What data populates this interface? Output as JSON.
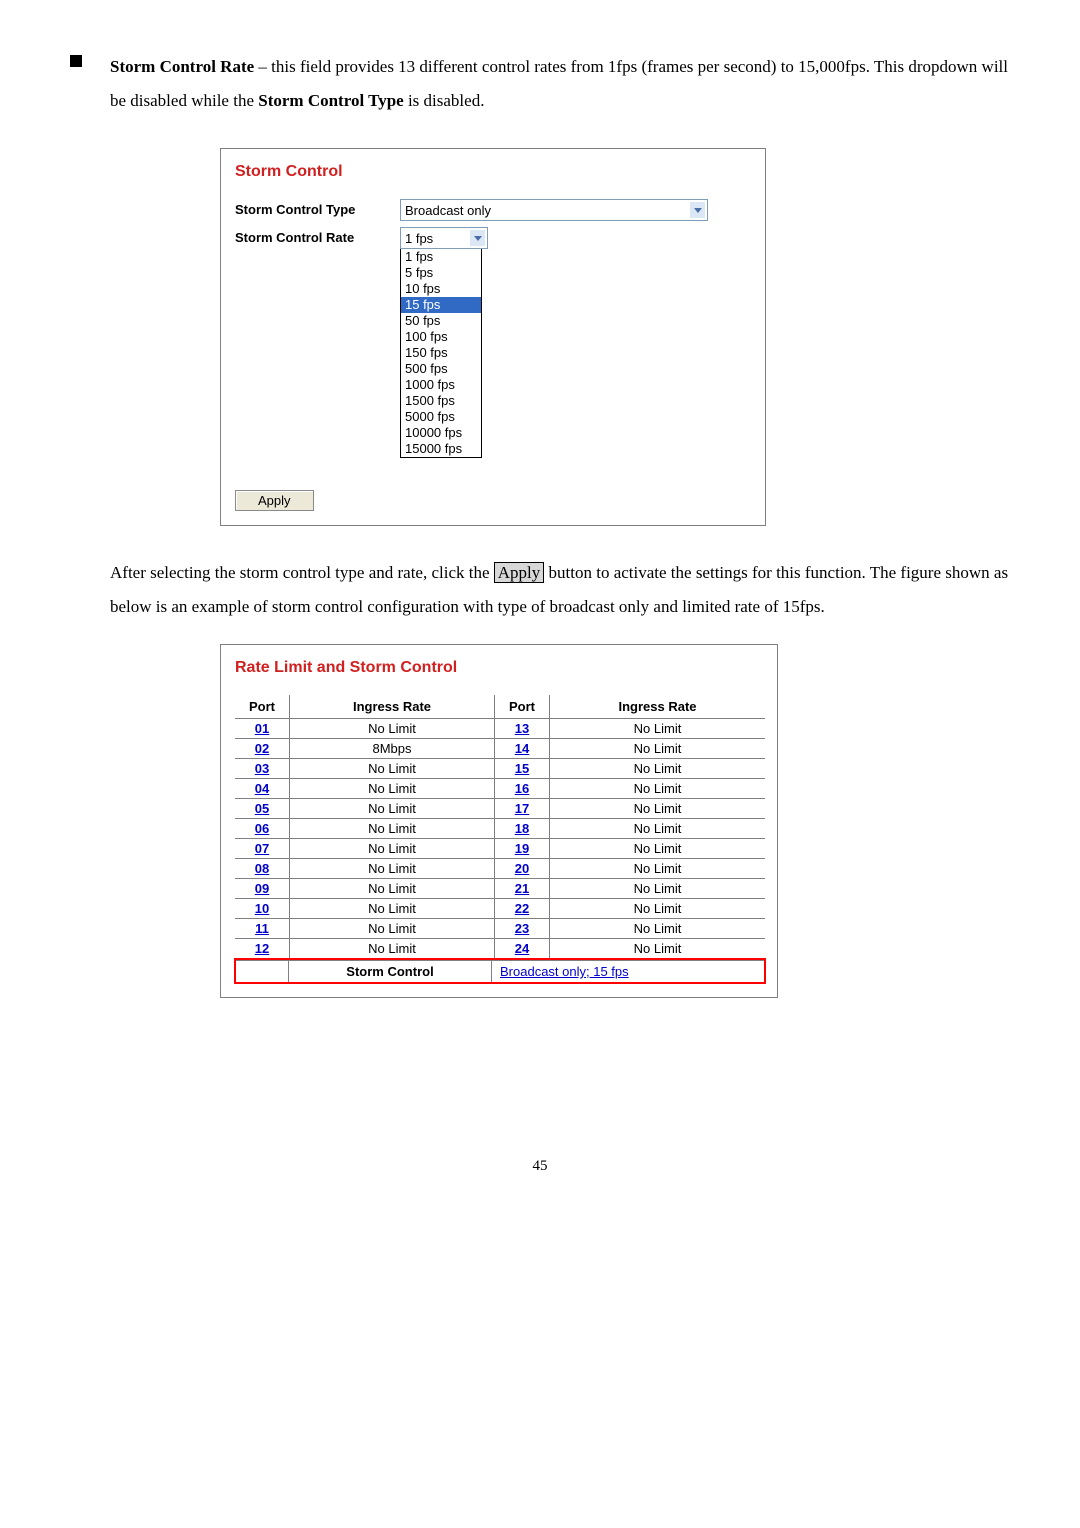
{
  "bullet": {
    "title": "Storm Control Rate",
    "text_part1": " – this field provides 13 different control rates from 1fps (frames per second) to 15,000fps. This dropdown will be disabled while the ",
    "bold2": "Storm Control Type",
    "text_part2": " is disabled."
  },
  "panel1": {
    "title": "Storm Control",
    "type_label": "Storm Control Type",
    "type_value": "Broadcast only",
    "rate_label": "Storm Control Rate",
    "rate_value": "1 fps",
    "apply": "Apply",
    "options": [
      "1 fps",
      "5 fps",
      "10 fps",
      "15 fps",
      "50 fps",
      "100 fps",
      "150 fps",
      "500 fps",
      "1000 fps",
      "1500 fps",
      "5000 fps",
      "10000 fps",
      "15000 fps"
    ],
    "selected_index": 3,
    "title_color": "#d02020",
    "chevron_color": "#4a6da7",
    "highlight_bg": "#316ac5"
  },
  "midtext": {
    "part1": "After selecting the storm control type and rate, click the ",
    "btn": "Apply",
    "part2": " button to activate the settings for this function. The figure shown as below is an example of storm control configuration with type of broadcast only and limited rate of 15fps."
  },
  "panel2": {
    "title": "Rate Limit and Storm Control",
    "title_color": "#d02020",
    "headers": {
      "port": "Port",
      "rate": "Ingress Rate"
    },
    "rows": [
      {
        "p1": "01",
        "r1": "No Limit",
        "p2": "13",
        "r2": "No Limit"
      },
      {
        "p1": "02",
        "r1": "8Mbps",
        "p2": "14",
        "r2": "No Limit"
      },
      {
        "p1": "03",
        "r1": "No Limit",
        "p2": "15",
        "r2": "No Limit"
      },
      {
        "p1": "04",
        "r1": "No Limit",
        "p2": "16",
        "r2": "No Limit"
      },
      {
        "p1": "05",
        "r1": "No Limit",
        "p2": "17",
        "r2": "No Limit"
      },
      {
        "p1": "06",
        "r1": "No Limit",
        "p2": "18",
        "r2": "No Limit"
      },
      {
        "p1": "07",
        "r1": "No Limit",
        "p2": "19",
        "r2": "No Limit"
      },
      {
        "p1": "08",
        "r1": "No Limit",
        "p2": "20",
        "r2": "No Limit"
      },
      {
        "p1": "09",
        "r1": "No Limit",
        "p2": "21",
        "r2": "No Limit"
      },
      {
        "p1": "10",
        "r1": "No Limit",
        "p2": "22",
        "r2": "No Limit"
      },
      {
        "p1": "11",
        "r1": "No Limit",
        "p2": "23",
        "r2": "No Limit"
      },
      {
        "p1": "12",
        "r1": "No Limit",
        "p2": "24",
        "r2": "No Limit"
      }
    ],
    "footer_label": "Storm Control",
    "footer_value": "Broadcast only; 15 fps",
    "link_color": "#0000cc"
  },
  "page_number": "45"
}
